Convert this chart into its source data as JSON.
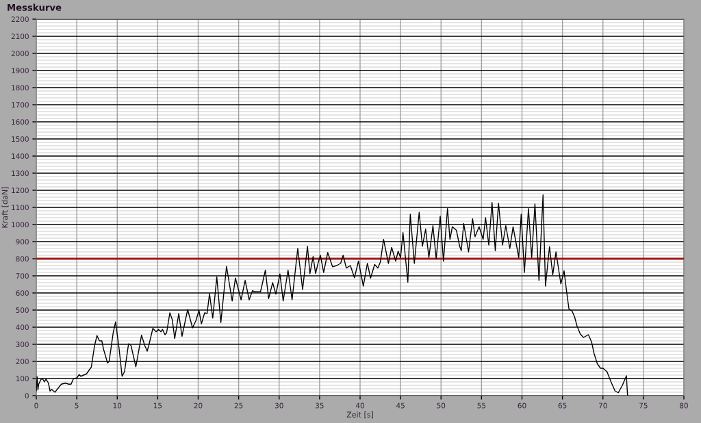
{
  "chart_data": {
    "type": "line",
    "title": "Messkurve",
    "xlabel": "Zeit [s]",
    "ylabel": "Kraft [daN]",
    "xlim": [
      0,
      80
    ],
    "xticks": [
      0,
      5,
      10,
      15,
      20,
      25,
      30,
      35,
      40,
      45,
      50,
      55,
      60,
      65,
      70,
      75,
      80
    ],
    "ylim": [
      0,
      2200
    ],
    "yticks": [
      0,
      100,
      200,
      300,
      400,
      500,
      600,
      700,
      800,
      900,
      1000,
      1100,
      1200,
      1300,
      1400,
      1500,
      1600,
      1700,
      1800,
      1900,
      2000,
      2100,
      2200
    ],
    "grid": true,
    "marker": "none",
    "line_style": "solid",
    "ref_lines": [
      {
        "axis": "y",
        "value": 800,
        "label": null,
        "color": "#a01818"
      }
    ],
    "series": [
      {
        "color": "#000000",
        "x": [
          0,
          0.1,
          0.2,
          0.3,
          0.6,
          0.8,
          1.0,
          1.2,
          1.5,
          1.7,
          1.9,
          2.3,
          3.1,
          3.6,
          4.0,
          4.3,
          4.6,
          5.0,
          5.3,
          5.5,
          6.2,
          6.5,
          6.8,
          7.2,
          7.5,
          7.8,
          8.1,
          8.3,
          8.8,
          9.0,
          9.5,
          9.8,
          9.9,
          10.2,
          10.6,
          10.9,
          11.4,
          11.7,
          12.3,
          13.0,
          13.4,
          13.7,
          13.9,
          14.4,
          14.8,
          15.1,
          15.4,
          15.6,
          15.9,
          16.1,
          16.5,
          16.8,
          17.1,
          17.6,
          18.0,
          18.7,
          19.3,
          19.7,
          20.1,
          20.4,
          20.8,
          21.1,
          21.4,
          21.8,
          22.3,
          22.8,
          23.5,
          24.2,
          24.6,
          25.3,
          25.8,
          26.3,
          26.7,
          27.0,
          27.7,
          28.3,
          28.7,
          29.2,
          29.6,
          30.1,
          30.5,
          31.1,
          31.6,
          32.3,
          32.9,
          33.5,
          33.8,
          34.2,
          34.5,
          34.8,
          35.1,
          35.5,
          36.0,
          36.6,
          37.1,
          37.6,
          37.9,
          38.3,
          38.8,
          39.3,
          39.8,
          40.4,
          40.9,
          41.3,
          41.8,
          42.2,
          42.5,
          42.9,
          43.5,
          43.9,
          44.4,
          44.7,
          45.0,
          45.3,
          45.9,
          46.2,
          46.7,
          47.3,
          47.7,
          48.1,
          48.5,
          49.0,
          49.4,
          49.9,
          50.3,
          50.8,
          51.1,
          51.4,
          51.9,
          52.3,
          52.5,
          52.8,
          53.4,
          53.9,
          54.2,
          54.7,
          55.2,
          55.5,
          55.9,
          56.3,
          56.7,
          57.1,
          57.6,
          58.0,
          58.5,
          58.9,
          59.6,
          59.9,
          60.3,
          60.8,
          61.2,
          61.6,
          62.1,
          62.6,
          62.9,
          63.4,
          63.8,
          64.2,
          64.8,
          65.2,
          65.5,
          65.8,
          66.2,
          66.5,
          66.8,
          67.2,
          67.6,
          68.2,
          68.6,
          68.9,
          69.3,
          69.7,
          70.0,
          70.5,
          71.0,
          71.5,
          71.9,
          72.4,
          72.9,
          73.0,
          73.05
        ],
        "values": [
          27,
          111,
          33,
          67,
          97,
          97,
          80,
          97,
          73,
          27,
          36,
          20,
          67,
          73,
          67,
          67,
          100,
          103,
          123,
          113,
          127,
          147,
          167,
          293,
          351,
          320,
          320,
          273,
          191,
          200,
          367,
          431,
          393,
          287,
          113,
          140,
          303,
          293,
          169,
          353,
          293,
          260,
          293,
          393,
          373,
          387,
          373,
          387,
          356,
          367,
          484,
          444,
          333,
          480,
          347,
          503,
          396,
          436,
          497,
          420,
          484,
          480,
          596,
          453,
          693,
          427,
          756,
          553,
          687,
          560,
          673,
          560,
          613,
          607,
          607,
          733,
          567,
          660,
          593,
          711,
          553,
          733,
          560,
          860,
          620,
          873,
          713,
          813,
          713,
          773,
          820,
          720,
          836,
          753,
          760,
          773,
          820,
          746,
          760,
          689,
          786,
          640,
          773,
          687,
          766,
          746,
          780,
          913,
          773,
          866,
          786,
          844,
          806,
          953,
          663,
          1060,
          773,
          1071,
          873,
          973,
          807,
          993,
          800,
          1049,
          786,
          1093,
          913,
          987,
          966,
          873,
          847,
          1006,
          840,
          1033,
          929,
          987,
          913,
          1040,
          880,
          1129,
          847,
          1124,
          880,
          993,
          860,
          987,
          807,
          1060,
          720,
          1093,
          807,
          1120,
          673,
          1173,
          640,
          870,
          706,
          840,
          653,
          729,
          613,
          507,
          493,
          460,
          407,
          360,
          340,
          356,
          313,
          247,
          187,
          160,
          160,
          140,
          80,
          27,
          17,
          60,
          116,
          33,
          0
        ]
      }
    ]
  }
}
